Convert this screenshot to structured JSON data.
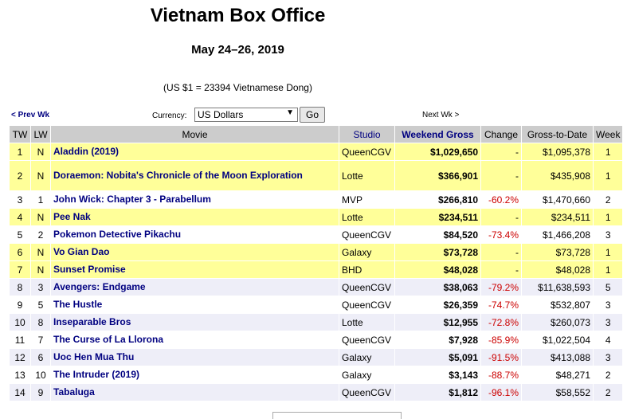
{
  "header": {
    "title": "Vietnam Box Office",
    "date_range": "May 24–26, 2019",
    "exchange_rate": "(US $1 = 23394 Vietnamese Dong)"
  },
  "nav": {
    "prev_label": "< Prev Wk",
    "next_label": "Next Wk >",
    "currency_label": "Currency:",
    "currency_value": "US Dollars",
    "go_label": "Go"
  },
  "table": {
    "columns": [
      "TW",
      "LW",
      "Movie",
      "Studio",
      "Weekend Gross",
      "Change",
      "Gross-to-Date",
      "Week"
    ],
    "rows": [
      {
        "tw": "1",
        "lw": "N",
        "movie": "Aladdin (2019)",
        "studio": "QueenCGV",
        "gross": "$1,029,650",
        "change": "-",
        "total": "$1,095,378",
        "week": "1"
      },
      {
        "tw": "2",
        "lw": "N",
        "movie": "Doraemon: Nobita's Chronicle of the Moon Exploration",
        "studio": "Lotte",
        "gross": "$366,901",
        "change": "-",
        "total": "$435,908",
        "week": "1"
      },
      {
        "tw": "3",
        "lw": "1",
        "movie": "John Wick: Chapter 3 - Parabellum",
        "studio": "MVP",
        "gross": "$266,810",
        "change": "-60.2%",
        "total": "$1,470,660",
        "week": "2"
      },
      {
        "tw": "4",
        "lw": "N",
        "movie": "Pee Nak",
        "studio": "Lotte",
        "gross": "$234,511",
        "change": "-",
        "total": "$234,511",
        "week": "1"
      },
      {
        "tw": "5",
        "lw": "2",
        "movie": "Pokemon Detective Pikachu",
        "studio": "QueenCGV",
        "gross": "$84,520",
        "change": "-73.4%",
        "total": "$1,466,208",
        "week": "3"
      },
      {
        "tw": "6",
        "lw": "N",
        "movie": "Vo Gian Dao",
        "studio": "Galaxy",
        "gross": "$73,728",
        "change": "-",
        "total": "$73,728",
        "week": "1"
      },
      {
        "tw": "7",
        "lw": "N",
        "movie": "Sunset Promise",
        "studio": "BHD",
        "gross": "$48,028",
        "change": "-",
        "total": "$48,028",
        "week": "1"
      },
      {
        "tw": "8",
        "lw": "3",
        "movie": "Avengers: Endgame",
        "studio": "QueenCGV",
        "gross": "$38,063",
        "change": "-79.2%",
        "total": "$11,638,593",
        "week": "5"
      },
      {
        "tw": "9",
        "lw": "5",
        "movie": "The Hustle",
        "studio": "QueenCGV",
        "gross": "$26,359",
        "change": "-74.7%",
        "total": "$532,807",
        "week": "3"
      },
      {
        "tw": "10",
        "lw": "8",
        "movie": "Inseparable Bros",
        "studio": "Lotte",
        "gross": "$12,955",
        "change": "-72.8%",
        "total": "$260,073",
        "week": "3"
      },
      {
        "tw": "11",
        "lw": "7",
        "movie": "The Curse of La Llorona",
        "studio": "QueenCGV",
        "gross": "$7,928",
        "change": "-85.9%",
        "total": "$1,022,504",
        "week": "4"
      },
      {
        "tw": "12",
        "lw": "6",
        "movie": "Uoc Hen Mua Thu",
        "studio": "Galaxy",
        "gross": "$5,091",
        "change": "-91.5%",
        "total": "$413,088",
        "week": "3"
      },
      {
        "tw": "13",
        "lw": "10",
        "movie": "The Intruder (2019)",
        "studio": "Galaxy",
        "gross": "$3,143",
        "change": "-88.7%",
        "total": "$48,271",
        "week": "2"
      },
      {
        "tw": "14",
        "lw": "9",
        "movie": "Tabaluga",
        "studio": "QueenCGV",
        "gross": "$1,812",
        "change": "-96.1%",
        "total": "$58,552",
        "week": "2"
      }
    ]
  },
  "colors": {
    "new_release_row": "#ffff99",
    "alt_row": "#eeeef8",
    "header_bg": "#cccccc",
    "link": "#000080",
    "negative": "#cc0000"
  }
}
